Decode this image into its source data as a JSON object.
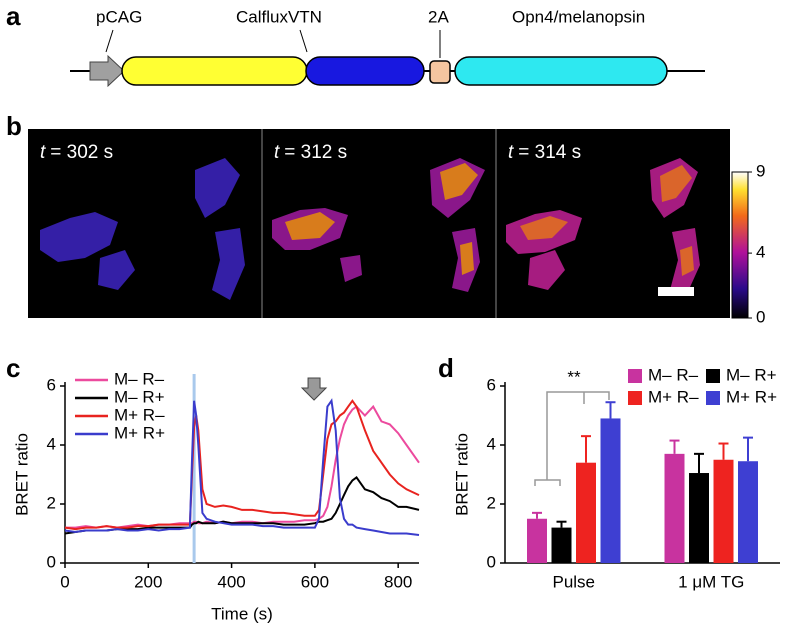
{
  "panel_labels": [
    "a",
    "b",
    "c",
    "d"
  ],
  "construct": {
    "promoter": "pCAG",
    "sensor": "CalfluxVTN",
    "linker": "2A",
    "opsin": "Opn4/melanopsin"
  },
  "images": {
    "time_labels": [
      {
        "var": "t",
        "rest": "= 302 s"
      },
      {
        "var": "t",
        "rest": "= 312 s"
      },
      {
        "var": "t",
        "rest": "= 314 s"
      }
    ]
  },
  "colorbar": {
    "lim": [
      0,
      9
    ],
    "ticks": [
      0,
      4,
      9
    ]
  },
  "chart_data": [
    {
      "type": "line",
      "xlabel": "Time (s)",
      "ylabel": "BRET ratio",
      "xlim": [
        0,
        850
      ],
      "xticks": [
        0,
        200,
        400,
        600,
        800
      ],
      "ylim": [
        0,
        6
      ],
      "yticks": [
        0,
        2,
        4,
        6
      ],
      "stimulus_x": 310,
      "stimulus_color": "#a9c9ec",
      "arrow_x": 598,
      "x": [
        0,
        25,
        50,
        75,
        100,
        125,
        150,
        175,
        200,
        225,
        250,
        275,
        300,
        305,
        310,
        315,
        320,
        330,
        340,
        360,
        380,
        400,
        425,
        450,
        475,
        500,
        525,
        550,
        575,
        600,
        610,
        620,
        630,
        640,
        650,
        660,
        670,
        680,
        690,
        700,
        720,
        740,
        760,
        780,
        800,
        820,
        850
      ],
      "series": [
        {
          "name": "M– R–",
          "color": "#ec4a9e",
          "values": [
            1.2,
            1.2,
            1.25,
            1.2,
            1.25,
            1.2,
            1.25,
            1.3,
            1.25,
            1.3,
            1.3,
            1.35,
            1.35,
            1.35,
            1.4,
            1.4,
            1.35,
            1.35,
            1.4,
            1.35,
            1.4,
            1.35,
            1.4,
            1.4,
            1.35,
            1.4,
            1.4,
            1.4,
            1.45,
            1.45,
            1.5,
            1.6,
            1.9,
            2.6,
            3.5,
            4.2,
            4.7,
            5.0,
            5.2,
            5.3,
            5.0,
            5.3,
            4.8,
            4.7,
            4.4,
            4.0,
            3.4
          ]
        },
        {
          "name": "M– R+",
          "color": "#000000",
          "values": [
            1.0,
            1.05,
            1.1,
            1.1,
            1.1,
            1.15,
            1.15,
            1.15,
            1.2,
            1.2,
            1.2,
            1.2,
            1.2,
            1.3,
            1.35,
            1.35,
            1.4,
            1.35,
            1.35,
            1.35,
            1.4,
            1.35,
            1.35,
            1.35,
            1.35,
            1.35,
            1.3,
            1.3,
            1.3,
            1.35,
            1.4,
            1.4,
            1.45,
            1.5,
            1.7,
            2.0,
            2.3,
            2.6,
            2.8,
            2.9,
            2.5,
            2.4,
            2.2,
            2.1,
            1.9,
            1.9,
            1.8
          ]
        },
        {
          "name": "M+ R–",
          "color": "#e8231f",
          "values": [
            1.2,
            1.15,
            1.2,
            1.2,
            1.25,
            1.2,
            1.2,
            1.25,
            1.25,
            1.3,
            1.3,
            1.3,
            1.3,
            3.0,
            4.6,
            5.0,
            4.5,
            2.5,
            2.0,
            1.9,
            1.95,
            1.9,
            1.8,
            1.8,
            1.75,
            1.7,
            1.7,
            1.65,
            1.6,
            1.6,
            1.8,
            3.0,
            4.2,
            4.7,
            4.8,
            5.0,
            5.1,
            5.3,
            5.5,
            5.3,
            4.5,
            3.8,
            3.4,
            3.0,
            2.7,
            2.5,
            2.3
          ]
        },
        {
          "name": "M+ R+",
          "color": "#3a3ccc",
          "values": [
            1.1,
            1.05,
            1.1,
            1.1,
            1.1,
            1.15,
            1.1,
            1.1,
            1.15,
            1.1,
            1.15,
            1.15,
            1.2,
            3.5,
            5.5,
            5.0,
            4.0,
            1.7,
            1.5,
            1.4,
            1.35,
            1.3,
            1.3,
            1.3,
            1.25,
            1.25,
            1.2,
            1.2,
            1.2,
            1.2,
            1.5,
            3.5,
            5.3,
            5.5,
            4.5,
            2.2,
            1.5,
            1.3,
            1.3,
            1.2,
            1.15,
            1.1,
            1.05,
            1.0,
            1.0,
            1.0,
            0.95
          ]
        }
      ]
    },
    {
      "type": "bar",
      "ylabel": "BRET ratio",
      "categories": [
        "Pulse",
        "1 μM TG"
      ],
      "ylim": [
        0,
        6
      ],
      "yticks": [
        0,
        2,
        4,
        6
      ],
      "annotation": "**",
      "series": [
        {
          "name": "M– R–",
          "color": "#c8339f",
          "values": [
            1.5,
            3.7
          ],
          "errors": [
            0.2,
            0.45
          ]
        },
        {
          "name": "M– R+",
          "color": "#000000",
          "values": [
            1.2,
            3.05
          ],
          "errors": [
            0.2,
            0.65
          ]
        },
        {
          "name": "M+ R–",
          "color": "#ee2320",
          "values": [
            3.4,
            3.5
          ],
          "errors": [
            0.9,
            0.55
          ]
        },
        {
          "name": "M+ R+",
          "color": "#3e3fd2",
          "values": [
            4.9,
            3.45
          ],
          "errors": [
            0.55,
            0.8
          ]
        }
      ]
    }
  ]
}
